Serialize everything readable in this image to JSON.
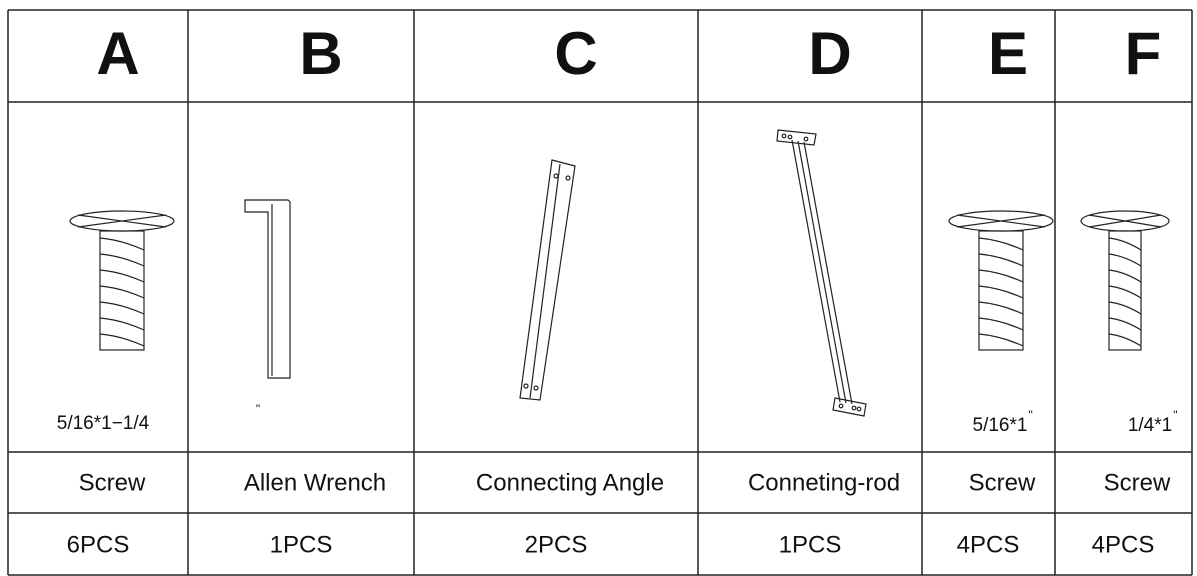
{
  "table": {
    "columns": [
      {
        "letter": "A",
        "size": "5/16*1−1/4",
        "name": "Screw",
        "quantity": "6PCS"
      },
      {
        "letter": "B",
        "size_mark": "\"",
        "name": "Allen Wrench",
        "quantity": "1PCS"
      },
      {
        "letter": "C",
        "name": "Connecting Angle",
        "quantity": "2PCS"
      },
      {
        "letter": "D",
        "name": "Conneting-rod",
        "quantity": "1PCS"
      },
      {
        "letter": "E",
        "size": "5/16*1",
        "size_mark": "\"",
        "name": "Screw",
        "quantity": "4PCS"
      },
      {
        "letter": "F",
        "size": "1/4*1",
        "size_mark": "\"",
        "name": "Screw",
        "quantity": "4PCS"
      }
    ]
  }
}
